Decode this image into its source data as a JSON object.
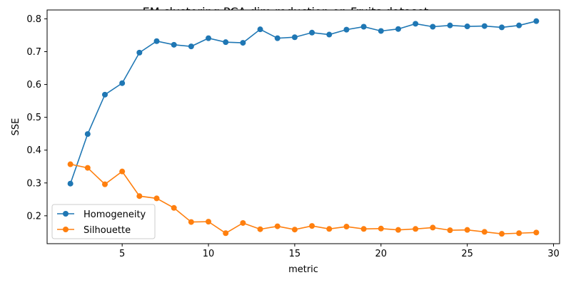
{
  "chart_data": {
    "type": "line",
    "title": "EM clustering PCA dim reduction on Fruits dataset",
    "xlabel": "metric",
    "ylabel": "SSE",
    "xlim": [
      0.65,
      30.35
    ],
    "ylim": [
      0.115,
      0.827
    ],
    "xticks": [
      5,
      10,
      15,
      20,
      25,
      30
    ],
    "yticks": [
      0.2,
      0.3,
      0.4,
      0.5,
      0.6,
      0.7,
      0.8
    ],
    "grid": false,
    "legend_position": "lower-left",
    "x": [
      2,
      3,
      4,
      5,
      6,
      7,
      8,
      9,
      10,
      11,
      12,
      13,
      14,
      15,
      16,
      17,
      18,
      19,
      20,
      21,
      22,
      23,
      24,
      25,
      26,
      27,
      28,
      29
    ],
    "series": [
      {
        "name": "Homogeneity",
        "color": "#1f77b4",
        "values": [
          0.298,
          0.449,
          0.569,
          0.604,
          0.697,
          0.732,
          0.721,
          0.716,
          0.741,
          0.729,
          0.727,
          0.768,
          0.741,
          0.744,
          0.758,
          0.752,
          0.767,
          0.776,
          0.763,
          0.769,
          0.785,
          0.776,
          0.78,
          0.777,
          0.778,
          0.774,
          0.78,
          0.793
        ]
      },
      {
        "name": "Silhouette",
        "color": "#ff7f0e",
        "values": [
          0.357,
          0.346,
          0.296,
          0.335,
          0.26,
          0.253,
          0.224,
          0.181,
          0.182,
          0.147,
          0.178,
          0.159,
          0.168,
          0.158,
          0.169,
          0.16,
          0.167,
          0.16,
          0.161,
          0.157,
          0.16,
          0.164,
          0.156,
          0.157,
          0.151,
          0.145,
          0.147,
          0.149
        ]
      }
    ]
  }
}
